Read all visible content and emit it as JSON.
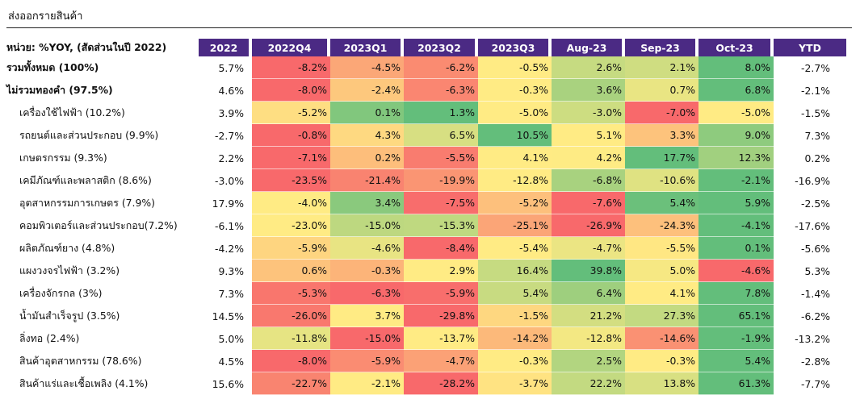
{
  "title": "ส่งออกรายสินค้า",
  "table": {
    "unit_label": "หน่วย: %YOY, (สัดส่วนในปี 2022)",
    "columns": [
      "2022",
      "2022Q4",
      "2023Q1",
      "2023Q2",
      "2023Q3",
      "Aug-23",
      "Sep-23",
      "Oct-23",
      "YTD"
    ],
    "rows": [
      {
        "label": "รวมทั้งหมด (100%)",
        "level": "bold",
        "values": [
          "5.7%",
          "-8.2%",
          "-4.5%",
          "-6.2%",
          "-0.5%",
          "2.6%",
          "2.1%",
          "8.0%",
          "-2.7%"
        ],
        "heat": [
          -8.2,
          -4.5,
          -6.2,
          -0.5,
          2.6,
          2.1,
          8.0
        ]
      },
      {
        "label": "ไม่รวมทองคำ (97.5%)",
        "level": "bold",
        "values": [
          "4.6%",
          "-8.0%",
          "-2.4%",
          "-6.3%",
          "-0.3%",
          "3.6%",
          "0.7%",
          "6.8%",
          "-2.1%"
        ],
        "heat": [
          -8.0,
          -2.4,
          -6.3,
          -0.3,
          3.6,
          0.7,
          6.8
        ]
      },
      {
        "label": "เครื่องใช้ไฟฟ้า (10.2%)",
        "level": "sub",
        "values": [
          "3.9%",
          "-5.2%",
          "0.1%",
          "1.3%",
          "-5.0%",
          "-3.0%",
          "-7.0%",
          "-5.0%",
          "-1.5%"
        ],
        "heat": [
          -5.2,
          0.1,
          1.3,
          -5.0,
          -3.0,
          -7.0,
          -5.0
        ]
      },
      {
        "label": "รถยนต์และส่วนประกอบ (9.9%)",
        "level": "sub",
        "values": [
          "-2.7%",
          "-0.8%",
          "4.3%",
          "6.5%",
          "10.5%",
          "5.1%",
          "3.3%",
          "9.0%",
          "7.3%"
        ],
        "heat": [
          -0.8,
          4.3,
          6.5,
          10.5,
          5.1,
          3.3,
          9.0
        ]
      },
      {
        "label": "เกษตรกรรม (9.3%)",
        "level": "sub",
        "values": [
          "2.2%",
          "-7.1%",
          "0.2%",
          "-5.5%",
          "4.1%",
          "4.2%",
          "17.7%",
          "12.3%",
          "0.2%"
        ],
        "heat": [
          -7.1,
          0.2,
          -5.5,
          4.1,
          4.2,
          17.7,
          12.3
        ]
      },
      {
        "label": "เคมีภัณฑ์และพลาสติก (8.6%)",
        "level": "sub",
        "values": [
          "-3.0%",
          "-23.5%",
          "-21.4%",
          "-19.9%",
          "-12.8%",
          "-6.8%",
          "-10.6%",
          "-2.1%",
          "-16.9%"
        ],
        "heat": [
          -23.5,
          -21.4,
          -19.9,
          -12.8,
          -6.8,
          -10.6,
          -2.1
        ]
      },
      {
        "label": "อุตสาหกรรมการเกษตร (7.9%)",
        "level": "sub",
        "values": [
          "17.9%",
          "-4.0%",
          "3.4%",
          "-7.5%",
          "-5.2%",
          "-7.6%",
          "5.4%",
          "5.9%",
          "-2.5%"
        ],
        "heat": [
          -4.0,
          3.4,
          -7.5,
          -5.2,
          -7.6,
          5.4,
          5.9
        ]
      },
      {
        "label": "คอมพิวเตอร์และส่วนประกอบ(7.2%)",
        "level": "sub",
        "values": [
          "-6.1%",
          "-23.0%",
          "-15.0%",
          "-15.3%",
          "-25.1%",
          "-26.9%",
          "-24.3%",
          "-4.1%",
          "-17.6%"
        ],
        "heat": [
          -23.0,
          -15.0,
          -15.3,
          -25.1,
          -26.9,
          -24.3,
          -4.1
        ]
      },
      {
        "label": "ผลิตภัณฑ์ยาง (4.8%)",
        "level": "sub",
        "values": [
          "-4.2%",
          "-5.9%",
          "-4.6%",
          "-8.4%",
          "-5.4%",
          "-4.7%",
          "-5.5%",
          "0.1%",
          "-5.6%"
        ],
        "heat": [
          -5.9,
          -4.6,
          -8.4,
          -5.4,
          -4.7,
          -5.5,
          0.1
        ]
      },
      {
        "label": "แผงวงจรไฟฟ้า (3.2%)",
        "level": "sub",
        "values": [
          "9.3%",
          "0.6%",
          "-0.3%",
          "2.9%",
          "16.4%",
          "39.8%",
          "5.0%",
          "-4.6%",
          "5.3%"
        ],
        "heat": [
          0.6,
          -0.3,
          2.9,
          16.4,
          39.8,
          5.0,
          -4.6
        ]
      },
      {
        "label": "เครื่องจักรกล (3%)",
        "level": "sub",
        "values": [
          "7.3%",
          "-5.3%",
          "-6.3%",
          "-5.9%",
          "5.4%",
          "6.4%",
          "4.1%",
          "7.8%",
          "-1.4%"
        ],
        "heat": [
          -5.3,
          -6.3,
          -5.9,
          5.4,
          6.4,
          4.1,
          7.8
        ]
      },
      {
        "label": "น้ำมันสำเร็จรูป (3.5%)",
        "level": "sub",
        "values": [
          "14.5%",
          "-26.0%",
          "3.7%",
          "-29.8%",
          "-1.5%",
          "21.2%",
          "27.3%",
          "65.1%",
          "-6.2%"
        ],
        "heat": [
          -26.0,
          3.7,
          -29.8,
          -1.5,
          21.2,
          27.3,
          65.1
        ]
      },
      {
        "label": "ลิ่งทอ (2.4%)",
        "level": "sub",
        "values": [
          "5.0%",
          "-11.8%",
          "-15.0%",
          "-13.7%",
          "-14.2%",
          "-12.8%",
          "-14.6%",
          "-1.9%",
          "-13.2%"
        ],
        "heat": [
          -11.8,
          -15.0,
          -13.7,
          -14.2,
          -12.8,
          -14.6,
          -1.9
        ]
      },
      {
        "label": "สินค้าอุตสาหกรรม (78.6%)",
        "level": "sub",
        "values": [
          "4.5%",
          "-8.0%",
          "-5.9%",
          "-4.7%",
          "-0.3%",
          "2.5%",
          "-0.3%",
          "5.4%",
          "-2.8%"
        ],
        "heat": [
          -8.0,
          -5.9,
          -4.7,
          -0.3,
          2.5,
          -0.3,
          5.4
        ]
      },
      {
        "label": "สินค้าแร่และเชื้อเพลิง (4.1%)",
        "level": "sub",
        "values": [
          "15.6%",
          "-22.7%",
          "-2.1%",
          "-28.2%",
          "-3.7%",
          "22.2%",
          "13.8%",
          "61.3%",
          "-7.7%"
        ],
        "heat": [
          -22.7,
          -2.1,
          -28.2,
          -3.7,
          22.2,
          13.8,
          61.3
        ]
      }
    ]
  },
  "colors": {
    "header_bg": "#4b2a84",
    "neg": "#f8696b",
    "mid": "#ffeb84",
    "pos": "#63be7b"
  }
}
